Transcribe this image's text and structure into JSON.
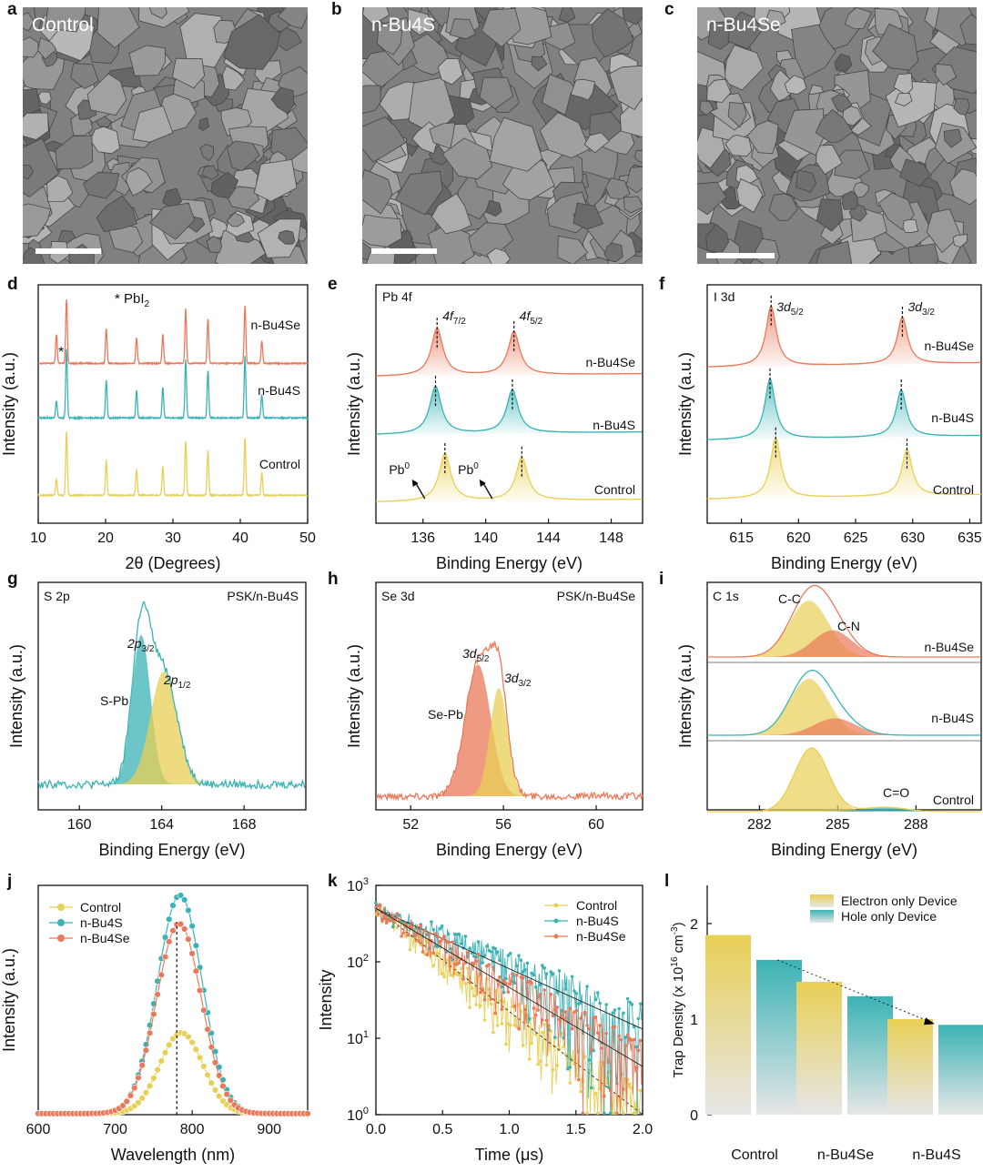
{
  "panel_letters": {
    "a": "a",
    "b": "b",
    "c": "c",
    "d": "d",
    "e": "e",
    "f": "f",
    "g": "g",
    "h": "h",
    "i": "i",
    "j": "j",
    "k": "k",
    "l": "l"
  },
  "sem_labels": {
    "a": "Control",
    "b": "n-Bu4S",
    "c": "n-Bu4Se"
  },
  "colors": {
    "control": "#e8cf55",
    "nbu4s": "#3bb3b5",
    "nbu4se": "#e9795a",
    "axis": "#111111",
    "sem_bg": "#808080"
  },
  "chart_data": [
    {
      "id": "d",
      "type": "line",
      "title": "",
      "xlabel": "2θ (Degrees)",
      "ylabel": "Intensity (a.u.)",
      "xlim": [
        10,
        50
      ],
      "xticks": [
        10,
        20,
        30,
        40,
        50
      ],
      "annotations": {
        "legend_star": "* PbI",
        "legend_sub": "2",
        "star": "*"
      },
      "peaks": [
        {
          "x": 12.7,
          "h": 0.25
        },
        {
          "x": 14.2,
          "h": 1.0
        },
        {
          "x": 20.1,
          "h": 0.55
        },
        {
          "x": 24.6,
          "h": 0.4
        },
        {
          "x": 28.5,
          "h": 0.45
        },
        {
          "x": 31.9,
          "h": 0.85
        },
        {
          "x": 35.2,
          "h": 0.7
        },
        {
          "x": 40.7,
          "h": 0.9
        },
        {
          "x": 43.2,
          "h": 0.35
        }
      ],
      "series": [
        {
          "name": "n-Bu4Se",
          "label": "n-Bu4Se",
          "color_key": "nbu4se",
          "pb_extra": true
        },
        {
          "name": "n-Bu4S",
          "label": "n-Bu4S",
          "color_key": "nbu4s",
          "pb_extra": false
        },
        {
          "name": "Control",
          "label": "Control",
          "color_key": "control",
          "pb_extra": false
        }
      ]
    },
    {
      "id": "e",
      "type": "line",
      "title": "Pb 4f",
      "xlabel": "Binding Energy (eV)",
      "ylabel": "Intensity (a.u.)",
      "xlim": [
        133,
        150
      ],
      "xticks": [
        136,
        140,
        144,
        148
      ],
      "peak_labels": {
        "p1": "4f",
        "p1_sub": "7/2",
        "p2": "4f",
        "p2_sub": "5/2"
      },
      "pb0": {
        "text": "Pb",
        "sup": "0"
      },
      "series": [
        {
          "name": "n-Bu4Se",
          "label": "n-Bu4Se",
          "color_key": "nbu4se",
          "peaks": [
            136.9,
            141.8
          ]
        },
        {
          "name": "n-Bu4S",
          "label": "n-Bu4S",
          "color_key": "nbu4s",
          "peaks": [
            136.8,
            141.7
          ]
        },
        {
          "name": "Control",
          "label": "Control",
          "color_key": "control",
          "peaks": [
            137.4,
            142.3
          ]
        }
      ]
    },
    {
      "id": "f",
      "type": "line",
      "title": "I 3d",
      "xlabel": "Binding Energy (eV)",
      "ylabel": "Intensity (a.u.)",
      "xlim": [
        612,
        636
      ],
      "xticks": [
        615,
        620,
        625,
        630,
        635
      ],
      "peak_labels": {
        "p1": "3d",
        "p1_sub": "5/2",
        "p2": "3d",
        "p2_sub": "3/2"
      },
      "series": [
        {
          "name": "n-Bu4Se",
          "label": "n-Bu4Se",
          "color_key": "nbu4se",
          "peaks": [
            617.6,
            629.1
          ]
        },
        {
          "name": "n-Bu4S",
          "label": "n-Bu4S",
          "color_key": "nbu4s",
          "peaks": [
            617.5,
            629.0
          ]
        },
        {
          "name": "Control",
          "label": "Control",
          "color_key": "control",
          "peaks": [
            618.0,
            629.5
          ]
        }
      ]
    },
    {
      "id": "g",
      "type": "area",
      "title": "S 2p",
      "sample": "PSK/n-Bu4S",
      "xlabel": "Binding Energy (eV)",
      "ylabel": "Intensity (a.u.)",
      "xlim": [
        158,
        171
      ],
      "xticks": [
        160,
        164,
        168
      ],
      "labels": {
        "sp": "S-Pb",
        "p32": "2p",
        "p32_sub": "3/2",
        "p12": "2p",
        "p12_sub": "1/2"
      },
      "components": [
        {
          "center": 163.0,
          "height": 0.82,
          "width": 0.45,
          "color_key": "nbu4s"
        },
        {
          "center": 164.1,
          "height": 0.62,
          "width": 0.65,
          "color_key": "control"
        }
      ]
    },
    {
      "id": "h",
      "type": "area",
      "title": "Se 3d",
      "sample": "PSK/n-Bu4Se",
      "xlabel": "Binding Energy (eV)",
      "ylabel": "Intensity (a.u.)",
      "xlim": [
        50.5,
        62
      ],
      "xticks": [
        52,
        56,
        60
      ],
      "labels": {
        "sep": "Se-Pb",
        "d52": "3d",
        "d52_sub": "5/2",
        "d32": "3d",
        "d32_sub": "3/2"
      },
      "components": [
        {
          "center": 54.9,
          "height": 0.85,
          "width": 0.55,
          "color_key": "nbu4se"
        },
        {
          "center": 55.8,
          "height": 0.7,
          "width": 0.38,
          "color_key": "control"
        }
      ]
    },
    {
      "id": "i",
      "type": "area",
      "title": "C 1s",
      "xlabel": "Binding Energy (eV)",
      "ylabel": "Intensity (a.u.)",
      "xlim": [
        280,
        290.5
      ],
      "xticks": [
        282,
        285,
        288
      ],
      "labels": {
        "cc": "C-C",
        "cn": "C-N",
        "co": "C=O"
      },
      "series": [
        {
          "name": "n-Bu4Se",
          "label": "n-Bu4Se",
          "components": [
            {
              "center": 283.9,
              "height": 0.95,
              "width": 0.75,
              "color_key": "control"
            },
            {
              "center": 284.8,
              "height": 0.45,
              "width": 0.75,
              "color_key": "nbu4se"
            }
          ]
        },
        {
          "name": "n-Bu4S",
          "label": "n-Bu4S",
          "components": [
            {
              "center": 283.9,
              "height": 1.0,
              "width": 0.75,
              "color_key": "control"
            },
            {
              "center": 284.9,
              "height": 0.3,
              "width": 0.8,
              "color_key": "nbu4se"
            }
          ]
        },
        {
          "name": "Control",
          "label": "Control",
          "components": [
            {
              "center": 284.0,
              "height": 1.0,
              "width": 0.65,
              "color_key": "control"
            },
            {
              "center": 286.8,
              "height": 0.07,
              "width": 0.8,
              "color_key": "nbu4s"
            }
          ]
        }
      ]
    },
    {
      "id": "j",
      "type": "line",
      "title": "",
      "xlabel": "Wavelength (nm)",
      "ylabel": "Intensity (a.u.)",
      "xlim": [
        600,
        950
      ],
      "ylim": [
        0,
        1.05
      ],
      "xticks": [
        600,
        700,
        800,
        900
      ],
      "ref_line": 780,
      "series": [
        {
          "name": "Control",
          "label": "Control",
          "center": 786,
          "height": 0.37,
          "width": 28,
          "color_key": "control"
        },
        {
          "name": "n-Bu4S",
          "label": "n-Bu4S",
          "center": 784,
          "height": 1.0,
          "width": 29,
          "color_key": "nbu4s"
        },
        {
          "name": "n-Bu4Se",
          "label": "n-Bu4Se",
          "center": 783,
          "height": 0.87,
          "width": 29,
          "color_key": "nbu4se"
        }
      ]
    },
    {
      "id": "k",
      "type": "scatter",
      "title": "",
      "xlabel": "Time (μs)",
      "ylabel": "Intensity",
      "yscale": "log",
      "xlim": [
        0,
        2
      ],
      "ylim": [
        1,
        1000
      ],
      "xticks": [
        "0.0",
        "0.5",
        "1.0",
        "1.5",
        "2.0"
      ],
      "yticks": [
        {
          "v": 1,
          "b": "10",
          "e": "0"
        },
        {
          "v": 10,
          "b": "10",
          "e": "1"
        },
        {
          "v": 100,
          "b": "10",
          "e": "2"
        },
        {
          "v": 1000,
          "b": "10",
          "e": "3"
        }
      ],
      "series": [
        {
          "name": "Control",
          "label": "Control",
          "amplitude": 500,
          "tau": 0.32,
          "color_key": "control"
        },
        {
          "name": "n-Bu4S",
          "label": "n-Bu4S",
          "amplitude": 500,
          "tau": 0.55,
          "color_key": "nbu4s"
        },
        {
          "name": "n-Bu4Se",
          "label": "n-Bu4Se",
          "amplitude": 500,
          "tau": 0.42,
          "color_key": "nbu4se"
        }
      ]
    },
    {
      "id": "l",
      "type": "bar",
      "title": "",
      "xlabel": "",
      "ylabel": "Trap Density (x 10",
      "ylabel_sup": "16",
      "ylabel_tail": " cm",
      "ylabel_sup2": "-3",
      "ylabel_end": ")",
      "ylim": [
        0,
        2.4
      ],
      "yticks": [
        0,
        1,
        2
      ],
      "categories": [
        "Control",
        "n-Bu4Se",
        "n-Bu4S"
      ],
      "series": [
        {
          "name": "Electron only Device",
          "label": "Electron only Device",
          "values": [
            1.88,
            1.39,
            1.0
          ],
          "color_key": "control"
        },
        {
          "name": "Hole only Device",
          "label": "Hole only Device",
          "values": [
            1.62,
            1.24,
            0.94
          ],
          "color_key": "nbu4s"
        }
      ]
    }
  ]
}
